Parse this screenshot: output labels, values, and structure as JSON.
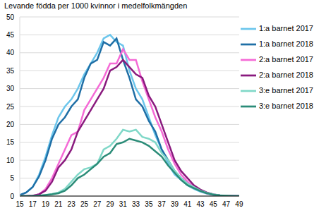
{
  "chart_data": {
    "type": "line",
    "title": "Levande födda per 1000 kvinnor i medelfolkmängden",
    "x": [
      15,
      16,
      17,
      18,
      19,
      20,
      21,
      22,
      23,
      24,
      25,
      26,
      27,
      28,
      29,
      30,
      31,
      32,
      33,
      34,
      35,
      36,
      37,
      38,
      39,
      40,
      41,
      42,
      43,
      44,
      45,
      46,
      47,
      48,
      49
    ],
    "xlim": [
      15,
      49
    ],
    "xticks": [
      15,
      17,
      19,
      21,
      23,
      25,
      27,
      29,
      31,
      33,
      35,
      37,
      39,
      41,
      43,
      45,
      47,
      49
    ],
    "ylim": [
      0,
      50
    ],
    "yticks": [
      0,
      5,
      10,
      15,
      20,
      25,
      30,
      35,
      40,
      45,
      50
    ],
    "grid": true,
    "legend": "top-right",
    "series": [
      {
        "name": "1:a barnet 2017",
        "color": "#6cc6ec",
        "values": [
          0.3,
          1,
          2.5,
          6,
          11,
          17,
          22,
          25,
          27,
          30,
          34,
          37,
          40,
          44,
          45,
          43,
          42,
          35,
          30,
          27,
          22,
          17,
          13,
          9,
          6,
          4.5,
          3,
          2,
          1.2,
          0.7,
          0.3,
          0.2,
          0.1,
          0.05,
          0.02
        ]
      },
      {
        "name": "1:a barnet 2018",
        "color": "#1f6fa6",
        "values": [
          0.3,
          1,
          2.5,
          5.5,
          10,
          16,
          20,
          22,
          25,
          27,
          33,
          37,
          38,
          43,
          42,
          44,
          38,
          33,
          27,
          25,
          21,
          18,
          13,
          10,
          7,
          5,
          3.5,
          2.3,
          1.5,
          0.8,
          0.4,
          0.2,
          0.1,
          0.05,
          0.02
        ]
      },
      {
        "name": "2:a barnet 2017",
        "color": "#f56ad6",
        "values": [
          0,
          0,
          0.1,
          0.5,
          2,
          5,
          9,
          13,
          17,
          18,
          24,
          27,
          30,
          33,
          37,
          37,
          41,
          38,
          38,
          32,
          27,
          22,
          18,
          13,
          9,
          6,
          4,
          2.5,
          1.5,
          0.8,
          0.4,
          0.2,
          0.1,
          0,
          0
        ]
      },
      {
        "name": "2:a barnet 2018",
        "color": "#8a1a7e",
        "values": [
          0,
          0,
          0.1,
          0.5,
          1.5,
          4,
          8,
          10,
          13,
          18,
          21,
          24,
          27,
          30,
          35,
          36,
          38,
          36,
          34,
          33,
          28,
          25,
          20,
          15,
          10,
          7,
          5,
          3,
          1.8,
          1,
          0.5,
          0.2,
          0.1,
          0,
          0
        ]
      },
      {
        "name": "3:e barnet 2017",
        "color": "#80d8c8",
        "values": [
          0,
          0,
          0,
          0.1,
          0.3,
          0.6,
          1,
          2,
          4,
          6,
          7.5,
          8,
          9,
          13,
          14,
          16,
          18.5,
          18,
          18.5,
          16.5,
          16,
          15,
          12,
          10,
          7,
          5,
          3.5,
          2.5,
          1.5,
          0.9,
          0.5,
          0.2,
          0.1,
          0,
          0
        ]
      },
      {
        "name": "3:e barnet 2018",
        "color": "#2b8c78",
        "values": [
          0,
          0,
          0,
          0.1,
          0.3,
          0.5,
          0.8,
          1.5,
          3,
          5,
          6,
          7.5,
          9,
          11,
          12,
          14.5,
          15,
          16,
          15.5,
          15,
          14,
          12.5,
          11,
          8.5,
          6.5,
          4.5,
          3,
          2.2,
          1.4,
          0.8,
          0.4,
          0.2,
          0.1,
          0,
          0
        ]
      }
    ]
  }
}
